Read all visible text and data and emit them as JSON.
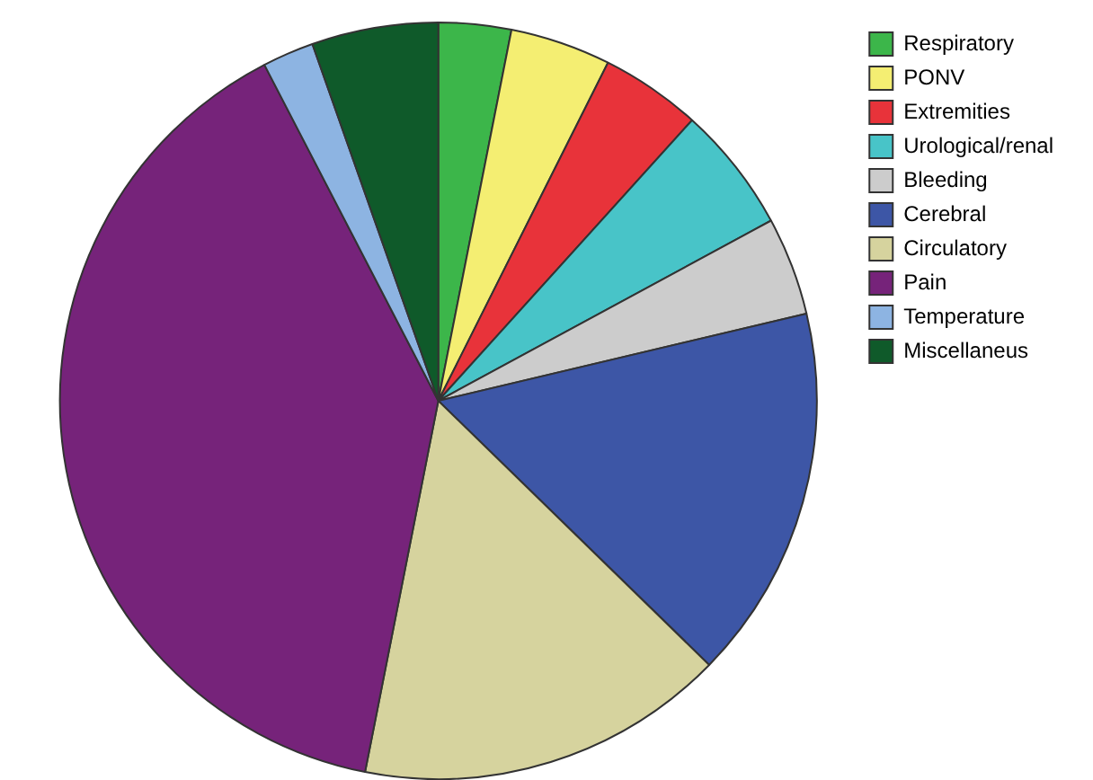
{
  "chart_data": {
    "type": "pie",
    "categories": [
      "Respiratory",
      "PONV",
      "Extremities",
      "Urological/renal",
      "Bleeding",
      "Cerebral",
      "Circulatory",
      "Pain",
      "Temperature",
      "Miscellaneus"
    ],
    "values": [
      3.1,
      4.3,
      4.3,
      5.4,
      4.2,
      16.0,
      15.8,
      39.3,
      2.2,
      5.4
    ],
    "colors": [
      "#3cb64a",
      "#f4ee72",
      "#e8333a",
      "#48c4c8",
      "#cccccc",
      "#3d56a6",
      "#d6d39e",
      "#76237a",
      "#8db4e2",
      "#0f5a2a"
    ],
    "legend": "top right"
  }
}
